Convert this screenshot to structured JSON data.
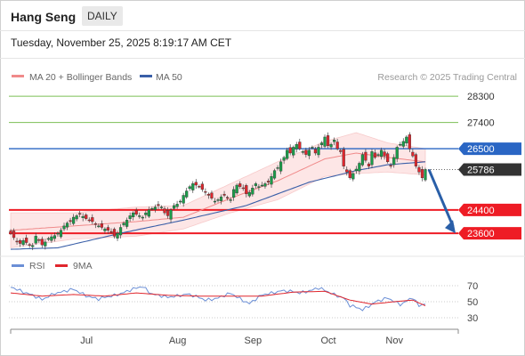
{
  "header": {
    "instrument": "Hang Seng",
    "timeframe": "DAILY",
    "timestamp": "Tuesday, November 25, 2025 8:19:17 AM CET"
  },
  "colors": {
    "candle_up": "#1a9e4a",
    "candle_down": "#e0262d",
    "ma20": "#f08a8a",
    "bollinger_fill": "#fde6e6",
    "ma50": "#3a5fa8",
    "support": "#ee1c25",
    "resistance": "#7bbf54",
    "pivot": "#2a66c4",
    "last_price": "#333333",
    "rsi": "#6b8fd6",
    "rsi_ma": "#e0262d",
    "arrow": "#2a5fa8"
  },
  "chart_data": [
    {
      "type": "candlestick",
      "title": "",
      "legend": [
        {
          "label": "MA 20 + Bollinger Bands",
          "color": "#f08a8a"
        },
        {
          "label": "MA 50",
          "color": "#3a5fa8"
        }
      ],
      "copyright": "Research © 2025 Trading Central",
      "x_tick_labels": [
        "Jul",
        "Aug",
        "Sep",
        "Oct",
        "Nov"
      ],
      "y_range": [
        22900,
        28700
      ],
      "levels": [
        {
          "label": "28300",
          "value": 28300,
          "kind": "resistance"
        },
        {
          "label": "27400",
          "value": 27400,
          "kind": "resistance"
        },
        {
          "label": "26500",
          "value": 26500,
          "kind": "pivot"
        },
        {
          "label": "25786",
          "value": 25786,
          "kind": "last"
        },
        {
          "label": "24400",
          "value": 24400,
          "kind": "support"
        },
        {
          "label": "23600",
          "value": 23600,
          "kind": "support"
        }
      ],
      "close": [
        23600,
        23450,
        23300,
        23250,
        23350,
        23280,
        23200,
        23180,
        23500,
        23350,
        23200,
        23300,
        23420,
        23480,
        23520,
        23600,
        23700,
        23850,
        23950,
        24000,
        24150,
        24200,
        24250,
        24180,
        24100,
        24050,
        24000,
        23900,
        23850,
        23800,
        23750,
        23700,
        23650,
        23500,
        23600,
        23800,
        23950,
        24050,
        24200,
        24300,
        24250,
        24200,
        24150,
        24300,
        24400,
        24450,
        24500,
        24550,
        24500,
        24300,
        24200,
        24400,
        24550,
        24600,
        24700,
        24900,
        25050,
        25200,
        25300,
        25250,
        25200,
        25100,
        25000,
        24900,
        24800,
        24700,
        24750,
        24850,
        24900,
        24800,
        24750,
        25100,
        25250,
        25200,
        25150,
        24950,
        25000,
        25150,
        25300,
        25200,
        25250,
        25300,
        25350,
        25550,
        25750,
        25850,
        26050,
        26200,
        26450,
        26350,
        26550,
        26650,
        26500,
        26400,
        26300,
        26450,
        26550,
        26350,
        26550,
        26700,
        26900,
        26600,
        26650,
        26800,
        26500,
        26400,
        25900,
        25700,
        25500,
        25650,
        25800,
        26000,
        26300,
        26100,
        25900,
        26400,
        26200,
        26300,
        26450,
        26250,
        26050,
        25900,
        26200,
        26550,
        26650,
        26750,
        26900,
        26500,
        26250,
        25900,
        25700,
        25500,
        25786
      ],
      "open_offset_pattern": [
        -60,
        80,
        -120,
        50,
        -40,
        90,
        -70
      ],
      "ma20_anchors": [
        [
          0,
          23700
        ],
        [
          20,
          23850
        ],
        [
          40,
          24000
        ],
        [
          55,
          24150
        ],
        [
          70,
          24800
        ],
        [
          85,
          25400
        ],
        [
          100,
          26150
        ],
        [
          110,
          26350
        ],
        [
          120,
          26200
        ],
        [
          132,
          26050
        ]
      ],
      "bb_half_width_anchors": [
        [
          0,
          600
        ],
        [
          20,
          450
        ],
        [
          40,
          500
        ],
        [
          55,
          400
        ],
        [
          70,
          500
        ],
        [
          85,
          650
        ],
        [
          100,
          600
        ],
        [
          110,
          700
        ],
        [
          120,
          500
        ],
        [
          132,
          450
        ]
      ],
      "ma50_anchors": [
        [
          0,
          23050
        ],
        [
          15,
          23100
        ],
        [
          35,
          23600
        ],
        [
          55,
          24050
        ],
        [
          75,
          24550
        ],
        [
          95,
          25350
        ],
        [
          110,
          25750
        ],
        [
          120,
          25950
        ],
        [
          132,
          26050
        ]
      ]
    },
    {
      "type": "line",
      "legend": [
        {
          "label": "RSI",
          "color": "#6b8fd6"
        },
        {
          "label": "9MA",
          "color": "#e0262d"
        }
      ],
      "y_range": [
        20,
        80
      ],
      "y_tick_labels": [
        "70",
        "50",
        "30"
      ],
      "y_ticks": [
        70,
        50,
        30
      ],
      "series": [
        {
          "name": "RSI",
          "anchors": [
            [
              0,
              68
            ],
            [
              6,
              60
            ],
            [
              10,
              52
            ],
            [
              14,
              61
            ],
            [
              20,
              65
            ],
            [
              24,
              58
            ],
            [
              28,
              53
            ],
            [
              32,
              57
            ],
            [
              37,
              63
            ],
            [
              42,
              69
            ],
            [
              45,
              60
            ],
            [
              50,
              55
            ],
            [
              56,
              60
            ],
            [
              62,
              52
            ],
            [
              66,
              55
            ],
            [
              70,
              60
            ],
            [
              76,
              48
            ],
            [
              80,
              58
            ],
            [
              86,
              64
            ],
            [
              92,
              61
            ],
            [
              98,
              67
            ],
            [
              101,
              62
            ],
            [
              106,
              55
            ],
            [
              108,
              45
            ],
            [
              112,
              40
            ],
            [
              116,
              50
            ],
            [
              120,
              54
            ],
            [
              124,
              47
            ],
            [
              128,
              55
            ],
            [
              130,
              44
            ],
            [
              132,
              48
            ]
          ]
        },
        {
          "name": "9MA",
          "anchors": [
            [
              0,
              61
            ],
            [
              10,
              57
            ],
            [
              20,
              59
            ],
            [
              30,
              57
            ],
            [
              40,
              61
            ],
            [
              50,
              58
            ],
            [
              60,
              57
            ],
            [
              70,
              57
            ],
            [
              80,
              57
            ],
            [
              90,
              62
            ],
            [
              100,
              63
            ],
            [
              108,
              52
            ],
            [
              115,
              47
            ],
            [
              122,
              50
            ],
            [
              128,
              52
            ],
            [
              132,
              45
            ]
          ]
        }
      ]
    }
  ]
}
